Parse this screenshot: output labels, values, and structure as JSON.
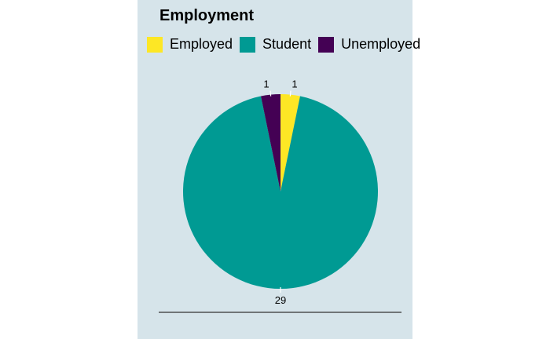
{
  "chart_data": {
    "type": "pie",
    "legend_title": "Employment",
    "legend_position": "top",
    "categories": [
      "Employed",
      "Student",
      "Unemployed"
    ],
    "values": [
      1,
      29,
      1
    ],
    "colors": [
      "#fde725",
      "#009a93",
      "#440154"
    ],
    "slice_order_clockwise_from_top": [
      "Employed",
      "Student",
      "Unemployed"
    ],
    "data_labels": [
      "1",
      "29",
      "1"
    ]
  }
}
